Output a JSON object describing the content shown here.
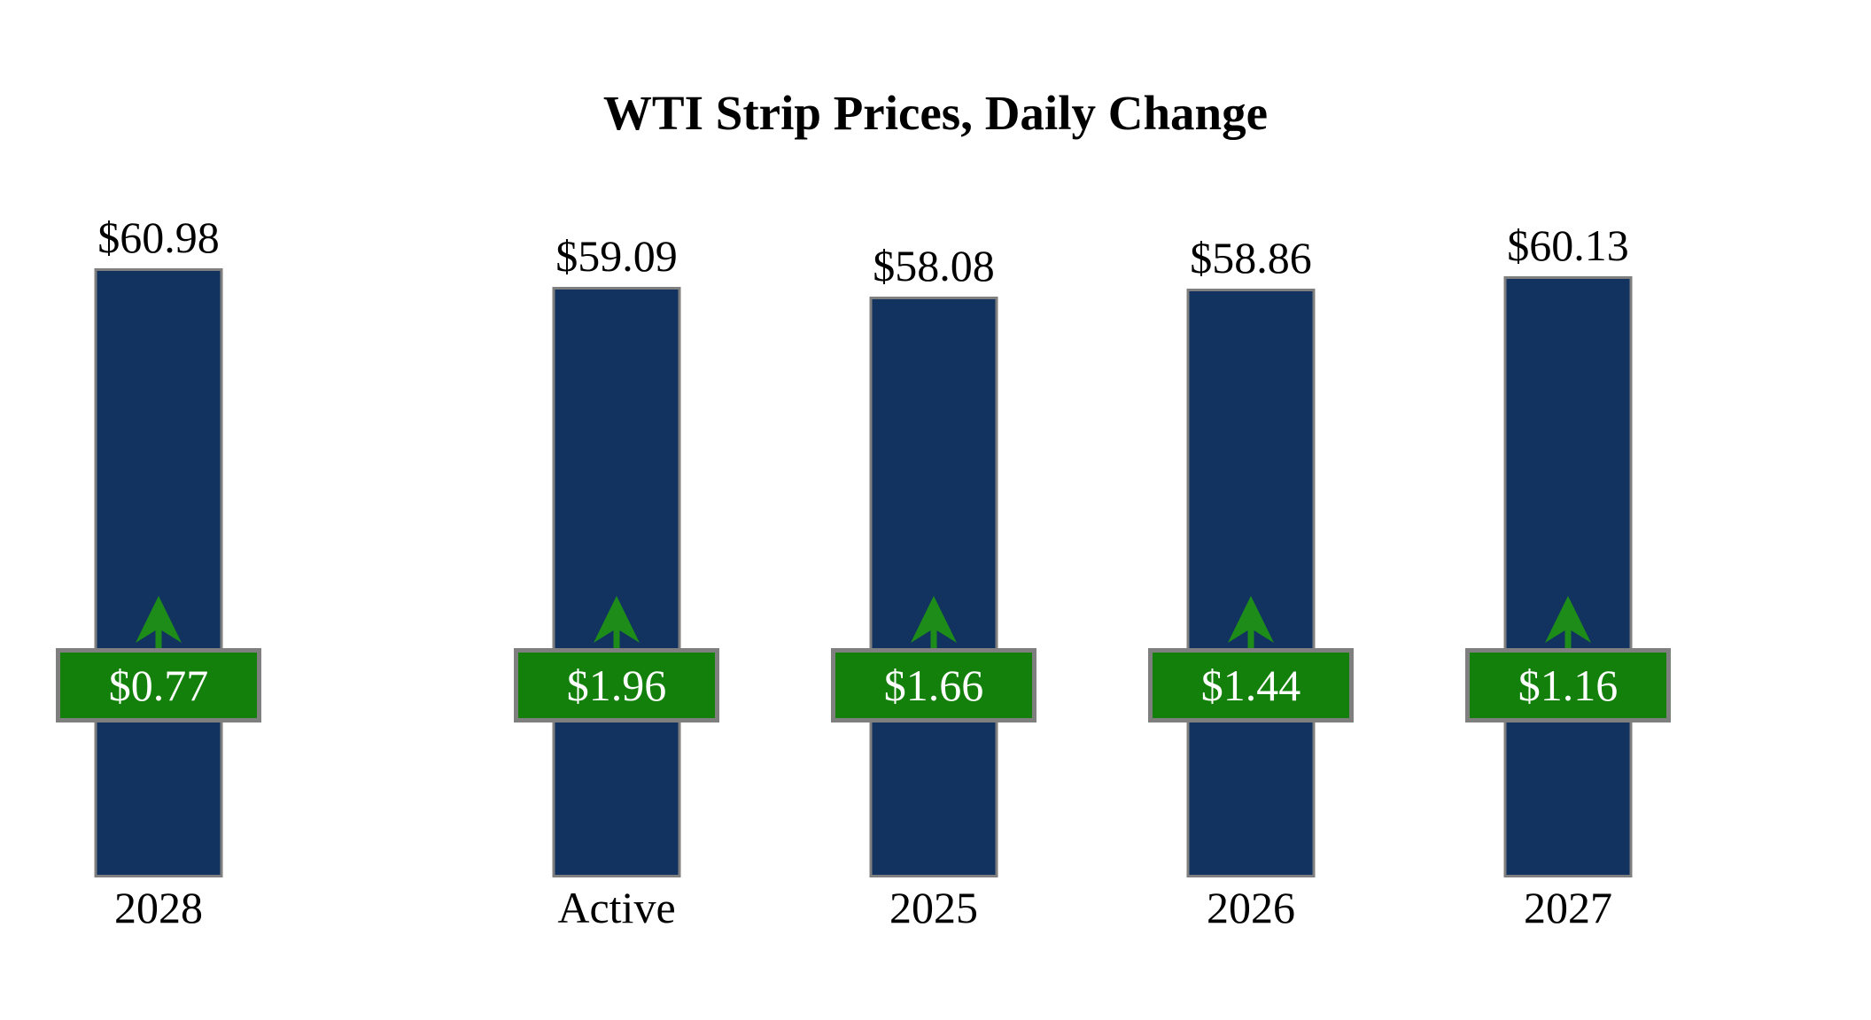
{
  "title": "WTI Strip Prices, Daily Change",
  "colors": {
    "background": "#ffffff",
    "bar_fill": "#12335f",
    "bar_border": "#7f7f7f",
    "badge_fill": "#12800a",
    "badge_border": "#7f7f7f",
    "badge_text": "#ffffff",
    "arrow": "#1e8c19",
    "label_text": "#000000"
  },
  "icons": {
    "up_arrow": "green-up-arrow"
  },
  "chart_data": {
    "type": "bar",
    "title": "WTI Strip Prices, Daily Change",
    "categories": [
      "Active",
      "2025",
      "2026",
      "2027",
      "2028"
    ],
    "series": [
      {
        "name": "WTI strip price (bar height, top label)",
        "values": [
          59.09,
          58.08,
          58.86,
          60.13,
          60.98
        ]
      },
      {
        "name": "Daily change (green badge)",
        "values": [
          1.96,
          1.66,
          1.44,
          1.16,
          0.77
        ]
      }
    ],
    "bars": [
      {
        "category": "Active",
        "price": 59.09,
        "price_label": "$59.09",
        "change": 1.96,
        "change_label": "$1.96",
        "direction": "up"
      },
      {
        "category": "2025",
        "price": 58.08,
        "price_label": "$58.08",
        "change": 1.66,
        "change_label": "$1.66",
        "direction": "up"
      },
      {
        "category": "2026",
        "price": 58.86,
        "price_label": "$58.86",
        "change": 1.44,
        "change_label": "$1.44",
        "direction": "up"
      },
      {
        "category": "2027",
        "price": 60.13,
        "price_label": "$60.13",
        "change": 1.16,
        "change_label": "$1.16",
        "direction": "up"
      },
      {
        "category": "2028",
        "price": 60.98,
        "price_label": "$60.98",
        "change": 0.77,
        "change_label": "$0.77",
        "direction": "up"
      }
    ],
    "baseline": 0,
    "ylim": [
      0,
      61
    ],
    "axes_visible": false,
    "gridlines": false,
    "legend": "none"
  }
}
